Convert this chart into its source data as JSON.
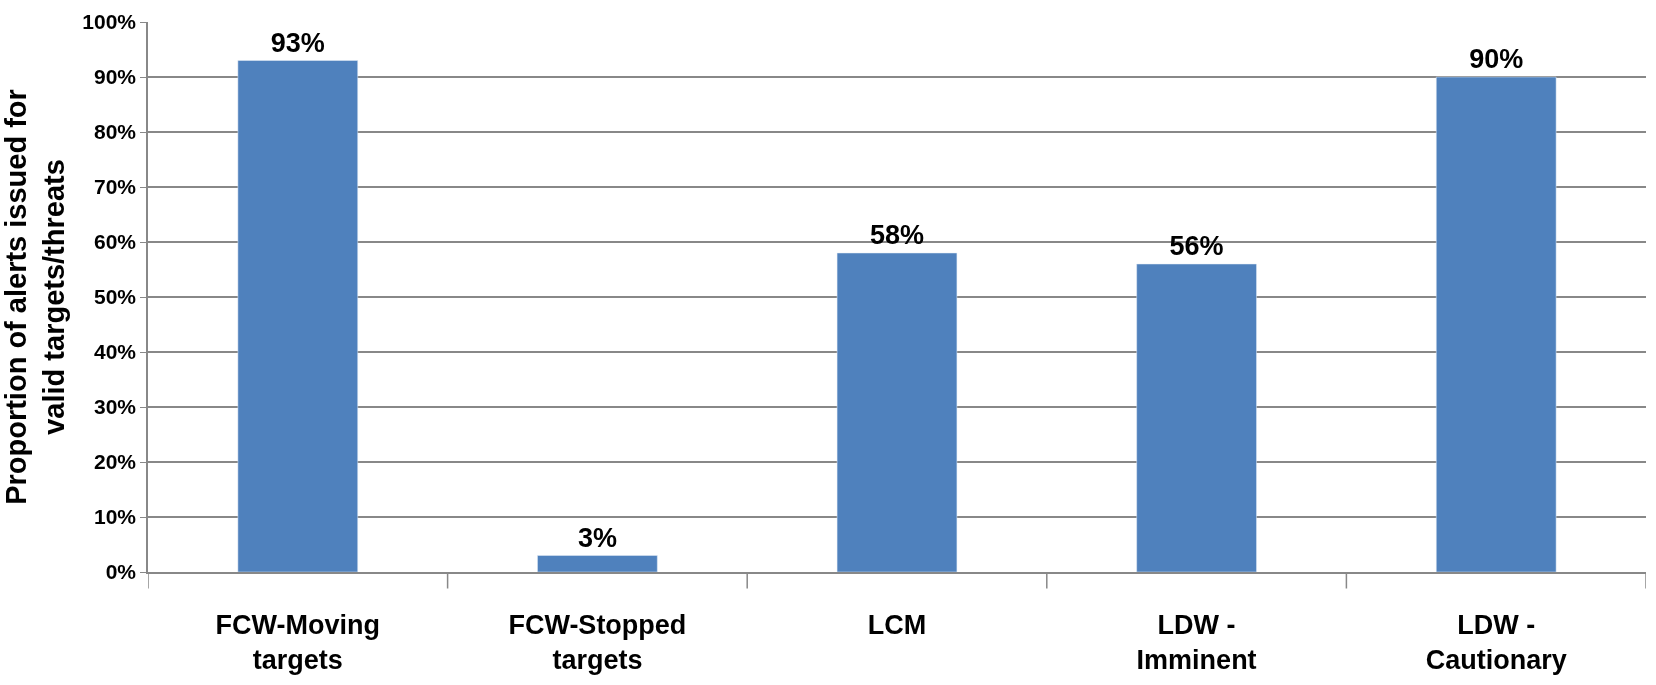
{
  "chart_data": {
    "type": "bar",
    "ylabel": "Proportion of alerts issued for valid targets/threats",
    "categories": [
      "FCW-Moving targets",
      "FCW-Stopped targets",
      "LCM",
      "LDW - Imminent",
      "LDW - Cautionary"
    ],
    "values": [
      93,
      3,
      58,
      56,
      90
    ],
    "color": "#4f81bd",
    "value_labels": [
      "93%",
      "3%",
      "58%",
      "56%",
      "90%"
    ],
    "ylim": [
      0,
      100
    ],
    "yticks": [
      {
        "value": 0,
        "label": "0%"
      },
      {
        "value": 10,
        "label": "10%"
      },
      {
        "value": 20,
        "label": "20%"
      },
      {
        "value": 30,
        "label": "30%"
      },
      {
        "value": 40,
        "label": "40%"
      },
      {
        "value": 50,
        "label": "50%"
      },
      {
        "value": 60,
        "label": "60%"
      },
      {
        "value": 70,
        "label": "70%"
      },
      {
        "value": 80,
        "label": "80%"
      },
      {
        "value": 90,
        "label": "90%"
      },
      {
        "value": 100,
        "label": "100%"
      }
    ],
    "grid": "y"
  }
}
